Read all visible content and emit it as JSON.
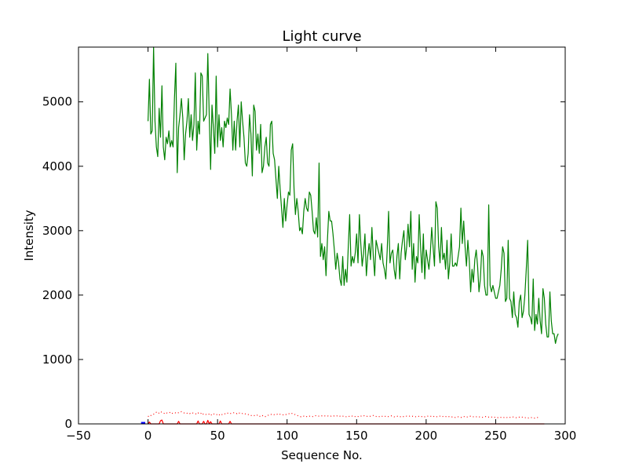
{
  "chart_data": {
    "type": "line",
    "title": "Light curve",
    "xlabel": "Sequence No.",
    "ylabel": "Intensity",
    "xlim": [
      -50,
      300
    ],
    "ylim": [
      0,
      5850
    ],
    "x_ticks": [
      -50,
      0,
      50,
      100,
      150,
      200,
      250,
      300
    ],
    "y_ticks": [
      0,
      1000,
      2000,
      3000,
      4000,
      5000
    ],
    "x_tick_labels": [
      "−50",
      "0",
      "50",
      "100",
      "150",
      "200",
      "250",
      "300"
    ],
    "y_tick_labels": [
      "0",
      "1000",
      "2000",
      "3000",
      "4000",
      "5000"
    ],
    "grid": false,
    "legend": "none",
    "series": [
      {
        "color": "#008000",
        "style": "solid",
        "x_start": 0,
        "x_step": 1,
        "values": [
          4700,
          5350,
          4500,
          4550,
          5850,
          4700,
          4300,
          4150,
          4900,
          4450,
          5250,
          4300,
          4100,
          4450,
          4350,
          4550,
          4300,
          4400,
          4300,
          5050,
          5600,
          3900,
          4600,
          4800,
          5050,
          4750,
          4100,
          4500,
          4700,
          5050,
          4450,
          4800,
          4400,
          4650,
          5450,
          4250,
          4700,
          4500,
          5450,
          5400,
          4700,
          4750,
          4800,
          5750,
          4800,
          3950,
          4950,
          4600,
          4200,
          5400,
          4300,
          4800,
          4400,
          4600,
          4300,
          4700,
          4600,
          4750,
          4650,
          5200,
          4800,
          4250,
          4700,
          4250,
          4700,
          4950,
          4300,
          5000,
          4700,
          4450,
          4050,
          4000,
          4200,
          4800,
          4500,
          3850,
          4950,
          4850,
          4250,
          4500,
          4200,
          4650,
          3900,
          4000,
          4300,
          4450,
          4050,
          4000,
          4650,
          4700,
          4200,
          4100,
          3800,
          3500,
          4000,
          3650,
          3350,
          3050,
          3500,
          3150,
          3400,
          3600,
          3550,
          4250,
          4350,
          3650,
          3250,
          3500,
          3300,
          3000,
          3050,
          2950,
          3300,
          3500,
          3350,
          3300,
          3600,
          3550,
          3300,
          3000,
          2950,
          3200,
          2900,
          4050,
          2600,
          2800,
          2550,
          2750,
          2300,
          2850,
          3300,
          3150,
          3150,
          2950,
          2700,
          2400,
          2650,
          2500,
          2250,
          2150,
          2600,
          2150,
          2400,
          2200,
          2750,
          3250,
          2450,
          2600,
          2500,
          2650,
          2950,
          2500,
          3250,
          2800,
          2450,
          2650,
          2950,
          2300,
          2600,
          2800,
          2550,
          3050,
          2600,
          2300,
          2850,
          2750,
          2650,
          2550,
          2800,
          2500,
          2400,
          2250,
          2700,
          3300,
          2500,
          2650,
          2700,
          2400,
          2250,
          2600,
          2800,
          2250,
          2650,
          2850,
          3000,
          2550,
          2750,
          3100,
          2750,
          3300,
          2400,
          2800,
          2200,
          2600,
          2500,
          3250,
          2750,
          2350,
          2950,
          2250,
          2700,
          2550,
          2400,
          2650,
          3050,
          2750,
          2450,
          3450,
          3350,
          2750,
          2500,
          3050,
          2550,
          2650,
          2400,
          2850,
          2250,
          2500,
          2950,
          2450,
          2450,
          2500,
          2450,
          2600,
          2750,
          3350,
          2800,
          3150,
          2750,
          2450,
          2850,
          2550,
          2050,
          2400,
          2200,
          2550,
          2700,
          2450,
          2050,
          2250,
          2700,
          2600,
          2150,
          2000,
          2000,
          3400,
          2150,
          2050,
          2150,
          2050,
          1950,
          1950,
          2050,
          2150,
          2400,
          2750,
          2650,
          1900,
          1950,
          2850,
          1950,
          1900,
          1650,
          2050,
          1700,
          1650,
          1500,
          1900,
          2000,
          1650,
          1750,
          2000,
          2400,
          2850,
          1700,
          1650,
          1550,
          2250,
          1450,
          1700,
          1550,
          1950,
          1600,
          1400,
          2100,
          1950,
          1550,
          1350,
          1350,
          2050,
          1600,
          1400,
          1400,
          1250,
          1350,
          1400
        ]
      },
      {
        "color": "#ff0000",
        "style": "dotted",
        "x_start": 0,
        "x_step": 1,
        "values": [
          120,
          110,
          130,
          140,
          150,
          170,
          180,
          160,
          170,
          190,
          180,
          170,
          160,
          175,
          165,
          170,
          180,
          160,
          170,
          175,
          170,
          165,
          175,
          180,
          190,
          180,
          170,
          175,
          165,
          170,
          160,
          175,
          170,
          165,
          160,
          150,
          170,
          155,
          165,
          140,
          160,
          150,
          145,
          155,
          150,
          130,
          150,
          160,
          145,
          140,
          150,
          135,
          155,
          145,
          150,
          160,
          150,
          165,
          170,
          160,
          165,
          170,
          175,
          165,
          160,
          175,
          165,
          170,
          160,
          165,
          155,
          150,
          145,
          140,
          130,
          130,
          125,
          135,
          130,
          140,
          120,
          115,
          130,
          125,
          110,
          120,
          130,
          140,
          150,
          145,
          150,
          140,
          145,
          150,
          140,
          150,
          145,
          140,
          150,
          145,
          150,
          160,
          155,
          165,
          160,
          155,
          140,
          135,
          125,
          120,
          110,
          115,
          120,
          110,
          115,
          110,
          120,
          115,
          110,
          120,
          125,
          130,
          125,
          120,
          120,
          125,
          130,
          125,
          120,
          125,
          120,
          115,
          125,
          120,
          125,
          120,
          125,
          130,
          120,
          115,
          120,
          115,
          110,
          115,
          120,
          115,
          125,
          120,
          110,
          115,
          120,
          115,
          110,
          120,
          125,
          130,
          120,
          115,
          120,
          115,
          120,
          125,
          130,
          120,
          115,
          120,
          115,
          110,
          120,
          115,
          120,
          115,
          110,
          115,
          120,
          125,
          120,
          110,
          115,
          120,
          115,
          110,
          115,
          120,
          110,
          115,
          120,
          115,
          120,
          125,
          120,
          115,
          110,
          115,
          120,
          115,
          110,
          115,
          120,
          110,
          115,
          120,
          115,
          120,
          115,
          110,
          120,
          115,
          110,
          115,
          120,
          110,
          115,
          120,
          115,
          110,
          115,
          110,
          105,
          110,
          105,
          100,
          105,
          110,
          105,
          100,
          110,
          115,
          110,
          105,
          110,
          115,
          120,
          115,
          110,
          105,
          110,
          115,
          110,
          105,
          100,
          105,
          110,
          115,
          110,
          105,
          100,
          105,
          110,
          105,
          100,
          95,
          100,
          105,
          100,
          95,
          100,
          105,
          100,
          95,
          100,
          105,
          110,
          105,
          100,
          95,
          100,
          105,
          110,
          105,
          100,
          95,
          100,
          95,
          90,
          95,
          100,
          95,
          90,
          95,
          100,
          95,
          90
        ]
      },
      {
        "color": "#ff0000",
        "style": "solid",
        "x_start": 0,
        "x_step": 1,
        "values": [
          0,
          30,
          0,
          0,
          0,
          0,
          0,
          0,
          0,
          50,
          60,
          0,
          0,
          0,
          0,
          0,
          0,
          0,
          0,
          0,
          0,
          0,
          40,
          0,
          0,
          0,
          0,
          0,
          0,
          0,
          0,
          0,
          0,
          0,
          0,
          0,
          45,
          0,
          0,
          0,
          40,
          0,
          0,
          55,
          0,
          35,
          0,
          0,
          0,
          0,
          0,
          0,
          45,
          0,
          0,
          0,
          0,
          0,
          0,
          40,
          0,
          0,
          0,
          0,
          0,
          0,
          0,
          0,
          0,
          0,
          0,
          0,
          0,
          0,
          0,
          0,
          0,
          0,
          0,
          0,
          0,
          0,
          0,
          0,
          0,
          0,
          0,
          0,
          0,
          0,
          0,
          0,
          0,
          0,
          0,
          0,
          0,
          0,
          0,
          0,
          0,
          0,
          0,
          0,
          0,
          0,
          0,
          0,
          0,
          0,
          0,
          0,
          0,
          0,
          0,
          0,
          0,
          0,
          0,
          0,
          0,
          0,
          0,
          0,
          0,
          0,
          0,
          0,
          0,
          0,
          0,
          0,
          0,
          0,
          0,
          0,
          0,
          0,
          0,
          0,
          0,
          0,
          0,
          0,
          0,
          0,
          0,
          0,
          0,
          0,
          0,
          0,
          0,
          0,
          0,
          0,
          0,
          0,
          0,
          0,
          0,
          0,
          0,
          0,
          0,
          0,
          0,
          0,
          0,
          0,
          0,
          0,
          0,
          0,
          0,
          0,
          0,
          0,
          0,
          0,
          0,
          0,
          0,
          0,
          0,
          0,
          0,
          0,
          0,
          0,
          0,
          0,
          0,
          0,
          0,
          0,
          0,
          0,
          0,
          0,
          0,
          0,
          0,
          0,
          0,
          0,
          0,
          0,
          0,
          0,
          0,
          0,
          0,
          0,
          0,
          0,
          0,
          0,
          0,
          0,
          0,
          0,
          0,
          0,
          0,
          0,
          0,
          0,
          0,
          0,
          0,
          0,
          0,
          0,
          0,
          0,
          0,
          0,
          0,
          0,
          0,
          0,
          0,
          0,
          0,
          0,
          0,
          0,
          0,
          0,
          0,
          0,
          0,
          0,
          0,
          0,
          0,
          0,
          0,
          0,
          0,
          0,
          0,
          0,
          0,
          0,
          0,
          0,
          0,
          0,
          0,
          0,
          0,
          0,
          0,
          0,
          0,
          0,
          0,
          0,
          0,
          0,
          0,
          0,
          0,
          0
        ]
      },
      {
        "color": "#0000ff",
        "style": "solid",
        "x": [
          -5,
          -2
        ],
        "values": [
          15,
          15
        ]
      }
    ]
  }
}
